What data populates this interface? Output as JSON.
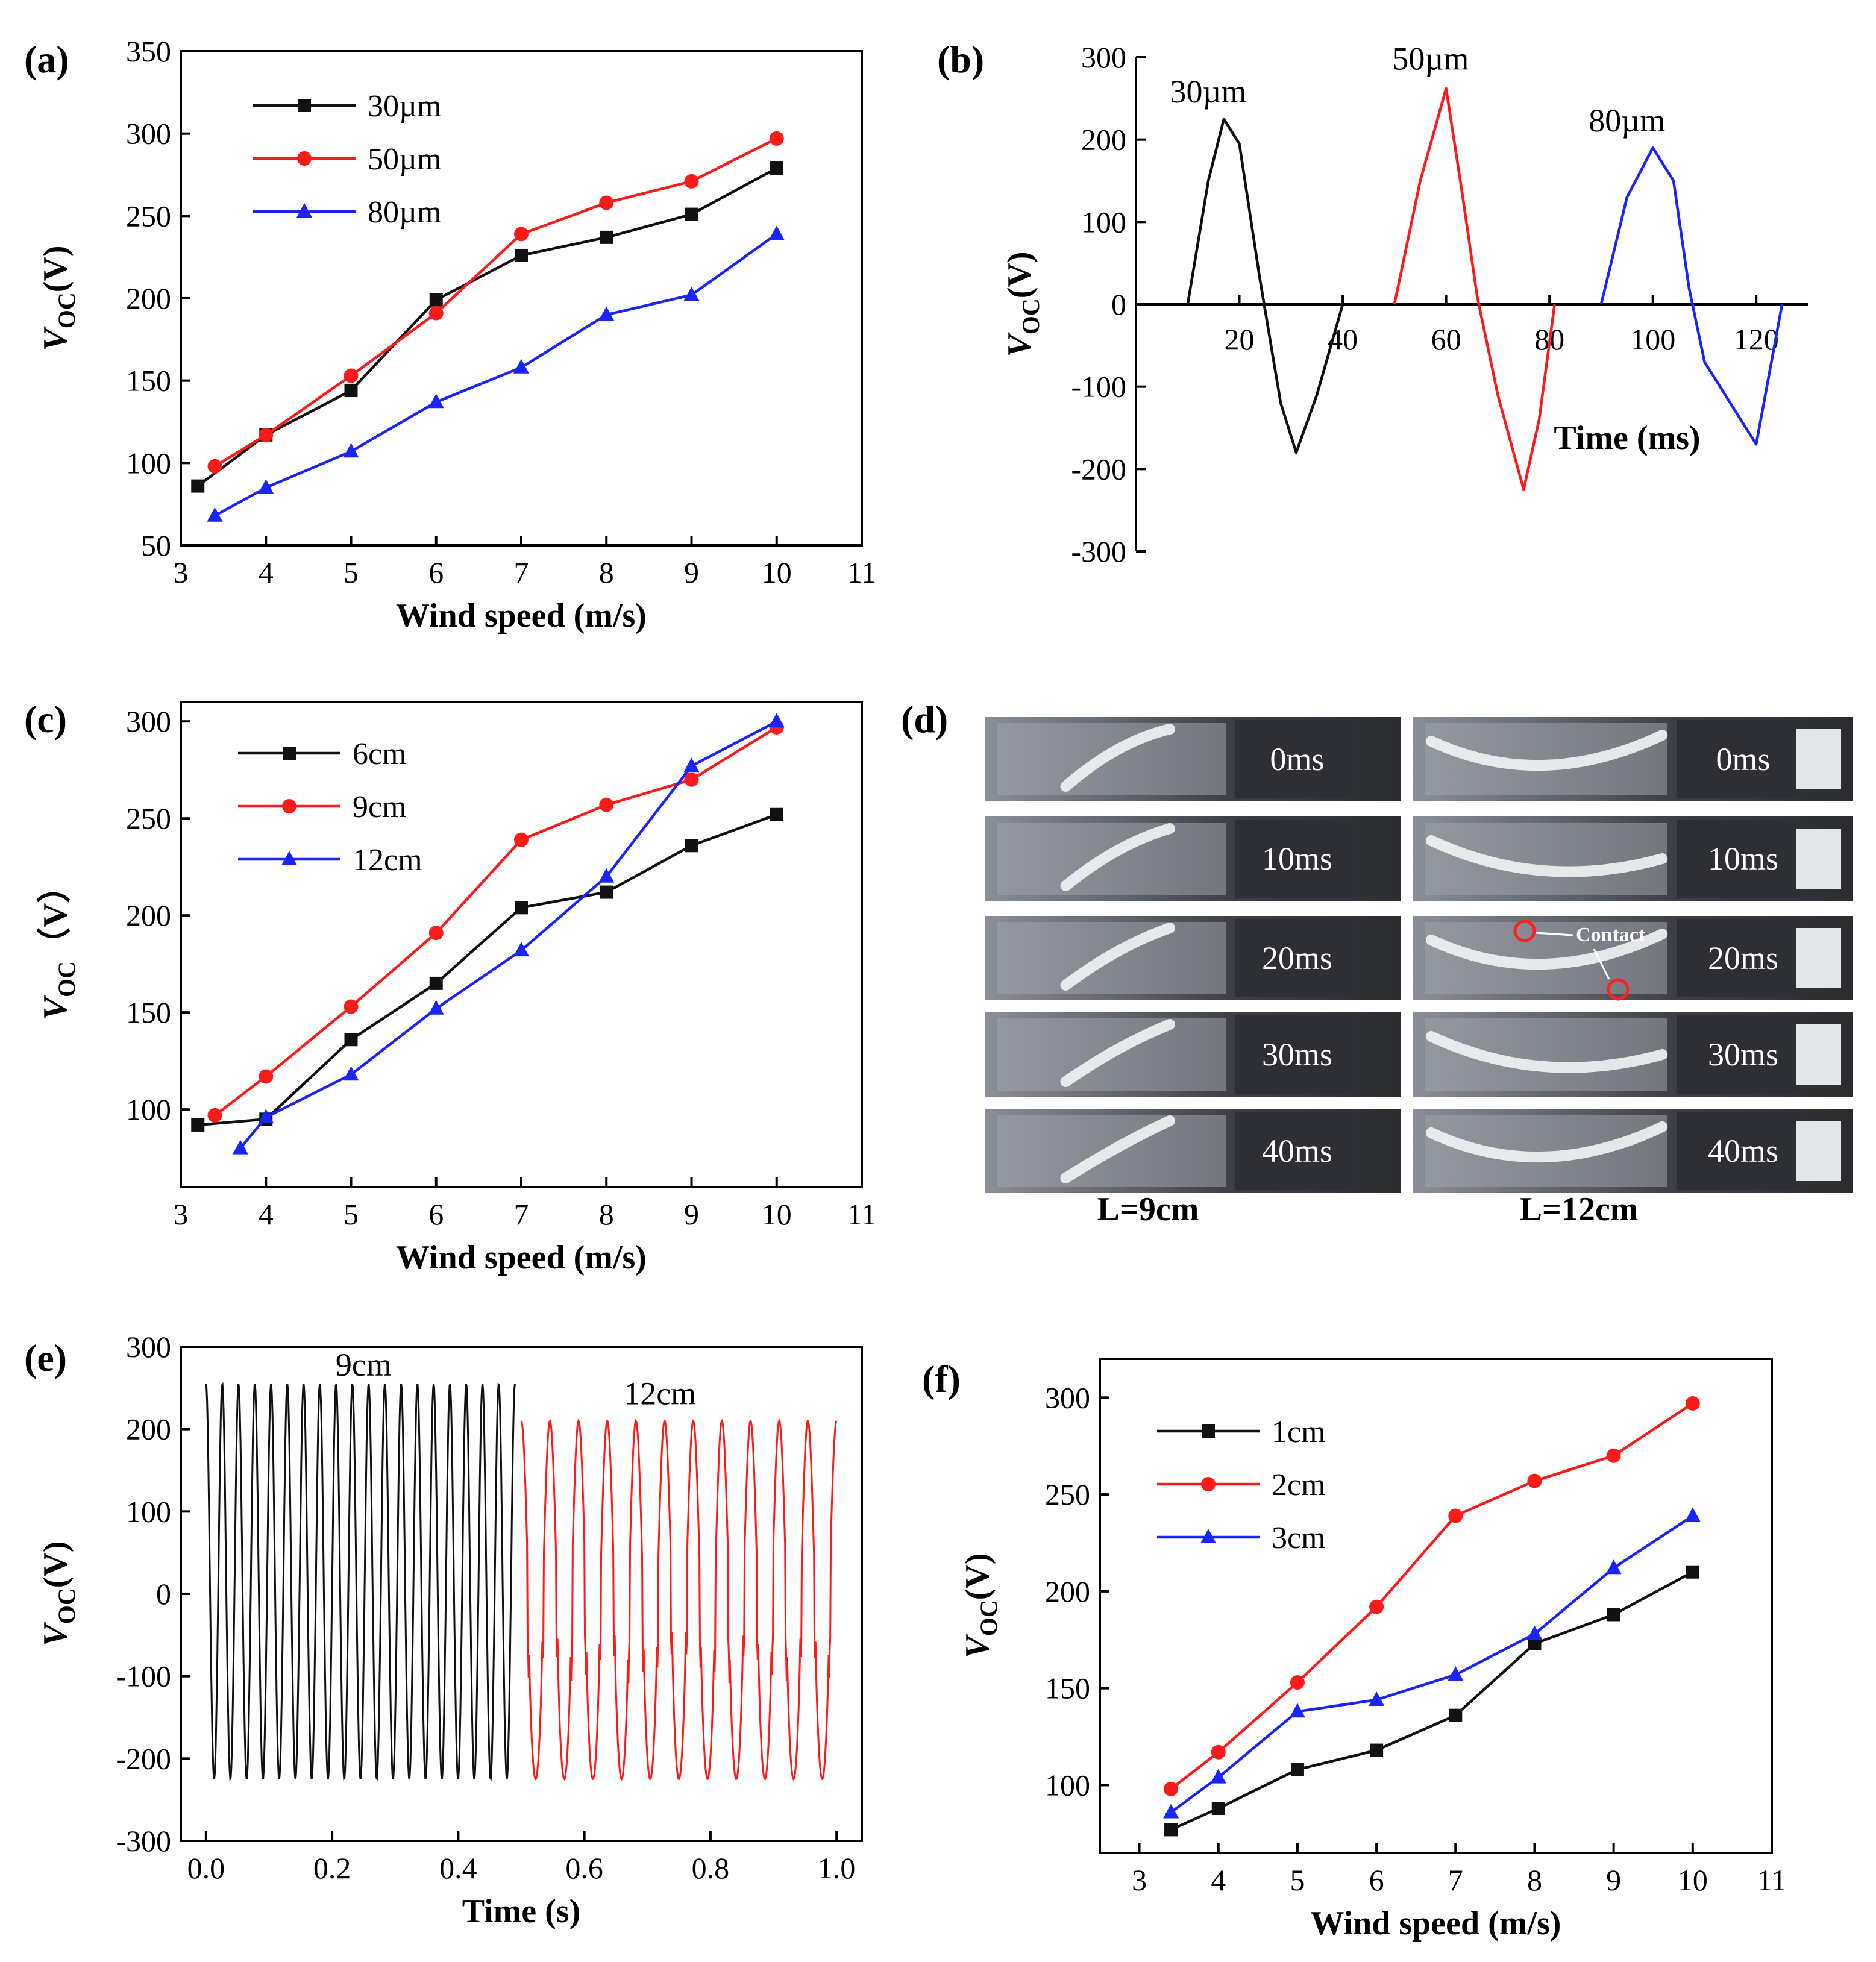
{
  "figure": {
    "colors": {
      "black": "#111111",
      "red": "#ff1a1a",
      "blue": "#1a24ff"
    }
  },
  "chart_data": [
    {
      "id": "a",
      "panel_label": "(a)",
      "type": "line",
      "xlabel": "Wind speed (m/s)",
      "ylabel_main": "V",
      "ylabel_sub": "OC",
      "ylabel_unit": "(V)",
      "xlim": [
        3,
        11
      ],
      "ylim": [
        50,
        350
      ],
      "xticks": [
        3,
        4,
        5,
        6,
        7,
        8,
        9,
        10,
        11
      ],
      "yticks": [
        50,
        100,
        150,
        200,
        250,
        300,
        350
      ],
      "legend_position": "top-left",
      "series": [
        {
          "name": "30µm",
          "color": "#111111",
          "marker": "square",
          "x": [
            3.2,
            4,
            5,
            6,
            7,
            8,
            9,
            10
          ],
          "y": [
            86,
            117,
            144,
            199,
            226,
            237,
            251,
            279
          ]
        },
        {
          "name": "50µm",
          "color": "#ff1a1a",
          "marker": "circle",
          "x": [
            3.4,
            4,
            5,
            6,
            7,
            8,
            9,
            10
          ],
          "y": [
            98,
            117,
            153,
            191,
            239,
            258,
            271,
            297
          ]
        },
        {
          "name": "80µm",
          "color": "#1a24ff",
          "marker": "triangle",
          "x": [
            3.4,
            4,
            5,
            6,
            7,
            8,
            9,
            10
          ],
          "y": [
            68,
            85,
            107,
            137,
            158,
            190,
            202,
            239
          ]
        }
      ]
    },
    {
      "id": "b",
      "panel_label": "(b)",
      "type": "line",
      "xlabel": "Time (ms)",
      "ylabel_main": "V",
      "ylabel_sub": "OC",
      "ylabel_unit": "(V)",
      "xlim": [
        0,
        130
      ],
      "ylim": [
        -300,
        300
      ],
      "xticks": [
        20,
        40,
        60,
        80,
        100,
        120
      ],
      "yticks": [
        -300,
        -200,
        -100,
        0,
        100,
        200,
        300
      ],
      "series": [
        {
          "name": "30µm",
          "color": "#111111",
          "x": [
            10,
            14,
            17,
            20,
            24,
            28,
            31,
            35,
            40
          ],
          "y": [
            0,
            150,
            225,
            195,
            30,
            -120,
            -180,
            -110,
            0
          ]
        },
        {
          "name": "50µm",
          "color": "#ff1a1a",
          "x": [
            50,
            55,
            60,
            63,
            66,
            70,
            75,
            78,
            81
          ],
          "y": [
            0,
            150,
            262,
            140,
            10,
            -110,
            -225,
            -140,
            0
          ]
        },
        {
          "name": "80µm",
          "color": "#1a24ff",
          "x": [
            90,
            95,
            100,
            104,
            107,
            110,
            115,
            120,
            125
          ],
          "y": [
            0,
            130,
            190,
            150,
            20,
            -70,
            -120,
            -170,
            0
          ]
        }
      ],
      "annotations": [
        {
          "text": "30µm",
          "x": 14,
          "y": 245
        },
        {
          "text": "50µm",
          "x": 57,
          "y": 285
        },
        {
          "text": "80µm",
          "x": 95,
          "y": 210
        }
      ]
    },
    {
      "id": "c",
      "panel_label": "(c)",
      "type": "line",
      "xlabel": "Wind speed (m/s)",
      "ylabel_main": "V",
      "ylabel_sub": "OC",
      "ylabel_unit": "（V）",
      "xlim": [
        3,
        11
      ],
      "ylim": [
        60,
        310
      ],
      "xticks": [
        3,
        4,
        5,
        6,
        7,
        8,
        9,
        10,
        11
      ],
      "yticks": [
        100,
        150,
        200,
        250,
        300
      ],
      "legend_position": "top-left",
      "series": [
        {
          "name": "6cm",
          "color": "#111111",
          "marker": "square",
          "x": [
            3.2,
            4,
            5,
            6,
            7,
            8,
            9,
            10
          ],
          "y": [
            92,
            95,
            136,
            165,
            204,
            212,
            236,
            252
          ]
        },
        {
          "name": "9cm",
          "color": "#ff1a1a",
          "marker": "circle",
          "x": [
            3.4,
            4,
            5,
            6,
            7,
            8,
            9,
            10
          ],
          "y": [
            97,
            117,
            153,
            191,
            239,
            257,
            270,
            297
          ]
        },
        {
          "name": "12cm",
          "color": "#1a24ff",
          "marker": "triangle",
          "x": [
            3.7,
            4,
            5,
            6,
            7,
            8,
            9,
            10
          ],
          "y": [
            80,
            96,
            118,
            152,
            182,
            220,
            277,
            300
          ]
        }
      ]
    },
    {
      "id": "e",
      "panel_label": "(e)",
      "type": "line",
      "xlabel": "Time (s)",
      "ylabel_main": "V",
      "ylabel_sub": "OC",
      "ylabel_unit": "(V)",
      "xlim": [
        -0.04,
        1.04
      ],
      "ylim": [
        -300,
        300
      ],
      "xticks": [
        0.0,
        0.2,
        0.4,
        0.6,
        0.8,
        1.0
      ],
      "ytick_labels": [
        "-300",
        "-200",
        "-100",
        "0",
        "100",
        "200",
        "300"
      ],
      "xtick_labels": [
        "0.0",
        "0.2",
        "0.4",
        "0.6",
        "0.8",
        "1.0"
      ],
      "series": [
        {
          "name": "9cm",
          "color": "#111111",
          "t_start": 0.0,
          "t_end": 0.49,
          "cycles": 19,
          "max": 255,
          "min": -225
        },
        {
          "name": "12cm",
          "color": "#ff1a1a",
          "t_start": 0.5,
          "t_end": 1.0,
          "cycles": 11,
          "max": 210,
          "min": -225
        }
      ],
      "annotations": [
        {
          "text": "9cm",
          "x": 0.25,
          "y": 265
        },
        {
          "text": "12cm",
          "x": 0.72,
          "y": 230
        }
      ]
    },
    {
      "id": "f",
      "panel_label": "(f)",
      "type": "line",
      "xlabel": "Wind speed (m/s)",
      "ylabel_main": "V",
      "ylabel_sub": "OC",
      "ylabel_unit": "(V)",
      "xlim": [
        2.5,
        11
      ],
      "ylim": [
        65,
        320
      ],
      "xticks": [
        3,
        4,
        5,
        6,
        7,
        8,
        9,
        10,
        11
      ],
      "yticks": [
        100,
        150,
        200,
        250,
        300
      ],
      "legend_position": "top-left",
      "series": [
        {
          "name": "1cm",
          "color": "#111111",
          "marker": "square",
          "x": [
            3.4,
            4,
            5,
            6,
            7,
            8,
            9,
            10
          ],
          "y": [
            77,
            88,
            108,
            118,
            136,
            173,
            188,
            210
          ]
        },
        {
          "name": "2cm",
          "color": "#ff1a1a",
          "marker": "circle",
          "x": [
            3.4,
            4,
            5,
            6,
            7,
            8,
            9,
            10
          ],
          "y": [
            98,
            117,
            153,
            192,
            239,
            257,
            270,
            297
          ]
        },
        {
          "name": "3cm",
          "color": "#1a24ff",
          "marker": "triangle",
          "x": [
            3.4,
            4,
            5,
            6,
            7,
            8,
            9,
            10
          ],
          "y": [
            86,
            104,
            138,
            144,
            157,
            178,
            212,
            239
          ]
        }
      ]
    }
  ],
  "panel_d": {
    "panel_label": "(d)",
    "time_labels": [
      "0ms",
      "10ms",
      "20ms",
      "30ms",
      "40ms"
    ],
    "column_labels": [
      "L=9cm",
      "L=12cm"
    ],
    "contact_label": "Contact"
  }
}
